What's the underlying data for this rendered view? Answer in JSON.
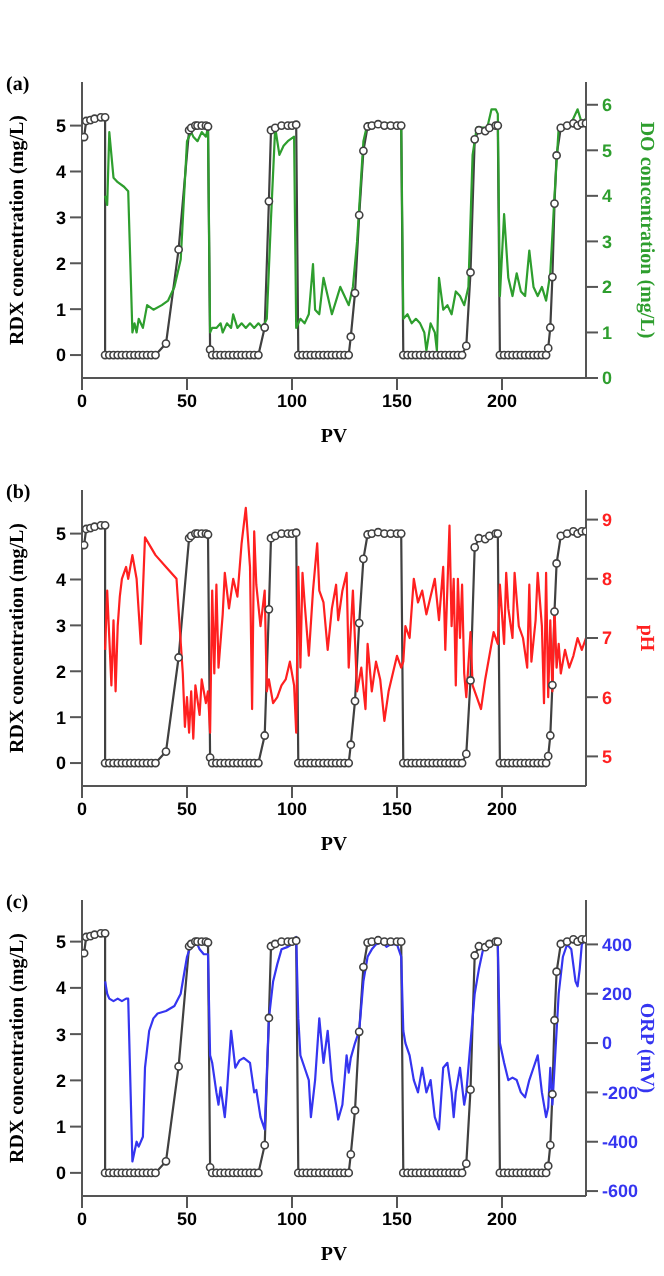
{
  "chart_data": [
    {
      "type": "line",
      "annotations": [
        "(a)"
      ],
      "xlabel": "PV",
      "ylabel": "RDX concentration (mg/L)",
      "y2label": "DO concentration (mg/L)",
      "xlim": [
        0,
        240
      ],
      "xticks": [
        0,
        50,
        100,
        150,
        200
      ],
      "ylim": [
        -0.5,
        5.95
      ],
      "yticks": [
        0,
        1,
        2,
        3,
        4,
        5
      ],
      "y2lim": [
        0,
        6.5
      ],
      "y2ticks": [
        0,
        1,
        2,
        3,
        4,
        5,
        6
      ],
      "series": [
        {
          "color": "#404040",
          "marker": "circle",
          "x": [
            1,
            2,
            4,
            6,
            9,
            11,
            11,
            13,
            15,
            17,
            19,
            21,
            23,
            25,
            27,
            29,
            31,
            33,
            35,
            40,
            46,
            51,
            52,
            54,
            55,
            57,
            59,
            60,
            61,
            62,
            64,
            66,
            68,
            70,
            72,
            74,
            76,
            78,
            80,
            82,
            84,
            87,
            89,
            90,
            92,
            95,
            98,
            100,
            102,
            103,
            105,
            107,
            109,
            111,
            113,
            115,
            117,
            119,
            121,
            123,
            125,
            127,
            128,
            130,
            132,
            134,
            136,
            138,
            141,
            144,
            147,
            150,
            152,
            153,
            155,
            157,
            159,
            161,
            163,
            165,
            167,
            169,
            171,
            173,
            175,
            177,
            179,
            181,
            183,
            185,
            187,
            189,
            192,
            194,
            197,
            198,
            199,
            201,
            203,
            205,
            207,
            209,
            211,
            213,
            215,
            217,
            219,
            221,
            222,
            223,
            224,
            225,
            226,
            228,
            231,
            234,
            236,
            238,
            240
          ],
          "values": [
            4.75,
            5.1,
            5.12,
            5.15,
            5.18,
            5.18,
            0,
            0,
            0,
            0,
            0,
            0,
            0,
            0,
            0,
            0,
            0,
            0,
            0,
            0.25,
            2.3,
            4.9,
            4.95,
            5.0,
            5.0,
            5.0,
            5.0,
            4.98,
            0.12,
            0,
            0,
            0,
            0,
            0,
            0,
            0,
            0,
            0,
            0,
            0,
            0,
            0.6,
            3.35,
            4.9,
            4.95,
            5.0,
            5.0,
            5.0,
            5.02,
            0,
            0,
            0,
            0,
            0,
            0,
            0,
            0,
            0,
            0,
            0,
            0,
            0,
            0.4,
            1.35,
            3.05,
            4.45,
            4.98,
            5.0,
            5.03,
            5.0,
            5.0,
            5.0,
            5.0,
            0,
            0,
            0,
            0,
            0,
            0,
            0,
            0,
            0,
            0,
            0,
            0,
            0,
            0,
            0,
            0.2,
            1.8,
            4.7,
            4.9,
            4.88,
            4.95,
            5.0,
            5.0,
            0,
            0,
            0,
            0,
            0,
            0,
            0,
            0,
            0,
            0,
            0,
            0,
            0.15,
            0.6,
            1.7,
            3.3,
            4.35,
            4.95,
            5.0,
            5.05,
            5.0,
            5.05,
            5.05
          ]
        },
        {
          "color": "#2e9e2e",
          "marker": "none",
          "axis": "y2",
          "x": [
            11,
            12,
            13,
            15,
            17,
            20,
            22,
            24,
            25,
            26,
            27,
            29,
            31,
            34,
            38,
            41,
            44,
            47,
            50,
            52,
            53,
            55,
            57,
            59,
            60,
            61,
            62,
            64,
            66,
            67,
            69,
            71,
            72,
            74,
            76,
            78,
            80,
            82,
            84,
            86,
            88,
            90,
            92,
            94,
            96,
            98,
            101,
            102,
            104,
            106,
            108,
            110,
            111,
            113,
            115,
            117,
            119,
            121,
            123,
            125,
            127,
            129,
            131,
            134,
            136,
            140,
            145,
            150,
            152,
            153,
            155,
            157,
            159,
            161,
            163,
            164,
            166,
            168,
            169,
            170,
            172,
            174,
            176,
            178,
            180,
            182,
            184,
            186,
            188,
            190,
            193,
            195,
            197,
            198,
            199,
            201,
            203,
            205,
            207,
            209,
            211,
            213,
            215,
            217,
            219,
            221,
            223,
            225,
            227,
            230,
            233,
            236,
            238,
            240
          ],
          "values": [
            4.0,
            3.8,
            5.4,
            4.4,
            4.3,
            4.2,
            4.1,
            1.0,
            1.2,
            1.0,
            1.3,
            1.1,
            1.6,
            1.5,
            1.6,
            1.7,
            2.0,
            2.6,
            5.2,
            5.4,
            5.3,
            5.2,
            5.4,
            5.3,
            5.5,
            1.0,
            1.1,
            1.1,
            1.2,
            1.0,
            1.2,
            1.1,
            1.4,
            1.1,
            1.2,
            1.1,
            1.2,
            1.1,
            1.2,
            1.1,
            1.3,
            3.5,
            5.5,
            4.9,
            5.1,
            5.2,
            5.3,
            1.1,
            1.3,
            1.2,
            1.4,
            2.5,
            1.5,
            1.4,
            2.2,
            1.8,
            1.4,
            1.7,
            2.0,
            1.8,
            1.6,
            2.0,
            3.0,
            5.2,
            5.6,
            5.6,
            5.6,
            5.5,
            5.6,
            1.3,
            1.4,
            1.2,
            1.3,
            1.2,
            1.0,
            0.6,
            1.2,
            1.0,
            0.6,
            2.2,
            1.5,
            1.6,
            1.4,
            1.9,
            1.8,
            1.6,
            2.0,
            4.9,
            5.5,
            5.5,
            5.5,
            5.9,
            5.9,
            5.8,
            1.8,
            3.6,
            2.2,
            1.8,
            2.3,
            1.9,
            1.8,
            2.8,
            2.0,
            1.8,
            2.0,
            1.7,
            2.3,
            4.0,
            5.5,
            5.5,
            5.6,
            5.9,
            5.6,
            5.7
          ]
        }
      ]
    },
    {
      "type": "line",
      "annotations": [
        "(b)"
      ],
      "xlabel": "PV",
      "ylabel": "RDX concentration (mg/L)",
      "y2label": "pH",
      "xlim": [
        0,
        240
      ],
      "xticks": [
        0,
        50,
        100,
        150,
        200
      ],
      "ylim": [
        -0.5,
        5.95
      ],
      "yticks": [
        0,
        1,
        2,
        3,
        4,
        5
      ],
      "y2lim": [
        4.5,
        9.5
      ],
      "y2ticks": [
        5,
        6,
        7,
        8,
        9
      ],
      "series": [
        {
          "color": "#404040",
          "marker": "circle",
          "x": [
            1,
            2,
            4,
            6,
            9,
            11,
            11,
            13,
            15,
            17,
            19,
            21,
            23,
            25,
            27,
            29,
            31,
            33,
            35,
            40,
            46,
            51,
            52,
            54,
            55,
            57,
            59,
            60,
            61,
            62,
            64,
            66,
            68,
            70,
            72,
            74,
            76,
            78,
            80,
            82,
            84,
            87,
            89,
            90,
            92,
            95,
            98,
            100,
            102,
            103,
            105,
            107,
            109,
            111,
            113,
            115,
            117,
            119,
            121,
            123,
            125,
            127,
            128,
            130,
            132,
            134,
            136,
            138,
            141,
            144,
            147,
            150,
            152,
            153,
            155,
            157,
            159,
            161,
            163,
            165,
            167,
            169,
            171,
            173,
            175,
            177,
            179,
            181,
            183,
            185,
            187,
            189,
            192,
            194,
            197,
            198,
            199,
            201,
            203,
            205,
            207,
            209,
            211,
            213,
            215,
            217,
            219,
            221,
            222,
            223,
            224,
            225,
            226,
            228,
            231,
            234,
            236,
            238,
            240
          ],
          "values": [
            4.75,
            5.1,
            5.12,
            5.15,
            5.18,
            5.18,
            0,
            0,
            0,
            0,
            0,
            0,
            0,
            0,
            0,
            0,
            0,
            0,
            0,
            0.25,
            2.3,
            4.9,
            4.95,
            5.0,
            5.0,
            5.0,
            5.0,
            4.98,
            0.12,
            0,
            0,
            0,
            0,
            0,
            0,
            0,
            0,
            0,
            0,
            0,
            0,
            0.6,
            3.35,
            4.9,
            4.95,
            5.0,
            5.0,
            5.0,
            5.02,
            0,
            0,
            0,
            0,
            0,
            0,
            0,
            0,
            0,
            0,
            0,
            0,
            0,
            0.4,
            1.35,
            3.05,
            4.45,
            4.98,
            5.0,
            5.03,
            5.0,
            5.0,
            5.0,
            5.0,
            0,
            0,
            0,
            0,
            0,
            0,
            0,
            0,
            0,
            0,
            0,
            0,
            0,
            0,
            0,
            0.2,
            1.8,
            4.7,
            4.9,
            4.88,
            4.95,
            5.0,
            5.0,
            0,
            0,
            0,
            0,
            0,
            0,
            0,
            0,
            0,
            0,
            0,
            0,
            0.15,
            0.6,
            1.7,
            3.3,
            4.35,
            4.95,
            5.0,
            5.05,
            5.0,
            5.05,
            5.05
          ]
        },
        {
          "color": "#ff2020",
          "marker": "none",
          "axis": "y2",
          "x": [
            11,
            12,
            13,
            14,
            15,
            16,
            17,
            18,
            19,
            21,
            22,
            24,
            26,
            28,
            30,
            35,
            40,
            45,
            48,
            49,
            50,
            51,
            52,
            53,
            54,
            56,
            57,
            59,
            60,
            61,
            62,
            63,
            64,
            65,
            67,
            68,
            70,
            72,
            74,
            76,
            78,
            80,
            81,
            82,
            83,
            85,
            87,
            88,
            89,
            91,
            93,
            95,
            97,
            99,
            101,
            102,
            103,
            104,
            105,
            106,
            108,
            110,
            112,
            113,
            115,
            117,
            119,
            121,
            122,
            124,
            126,
            127,
            129,
            131,
            133,
            135,
            136,
            138,
            140,
            142,
            144,
            146,
            148,
            150,
            152,
            153,
            154,
            156,
            158,
            160,
            162,
            164,
            166,
            168,
            170,
            172,
            173,
            175,
            176,
            177,
            178,
            179,
            180,
            181,
            182,
            183,
            185,
            186,
            188,
            190,
            192,
            194,
            196,
            198,
            199,
            201,
            202,
            203,
            205,
            206,
            208,
            210,
            212,
            213,
            214,
            216,
            217,
            219,
            220,
            221,
            222,
            223,
            224,
            225,
            226,
            227,
            228,
            230,
            232,
            234,
            236,
            238,
            240
          ],
          "values": [
            6.8,
            7.8,
            7.0,
            6.2,
            7.3,
            6.1,
            7.2,
            7.7,
            8.0,
            8.2,
            8.0,
            8.4,
            8.0,
            6.9,
            8.7,
            8.4,
            8.2,
            8.0,
            6.4,
            5.5,
            6.0,
            5.4,
            6.1,
            5.3,
            6.2,
            5.7,
            6.3,
            5.9,
            6.1,
            5.4,
            7.8,
            6.4,
            7.9,
            6.5,
            7.4,
            8.1,
            7.5,
            8.0,
            7.7,
            8.6,
            9.2,
            8.2,
            5.8,
            8.8,
            7.9,
            7.2,
            7.8,
            6.1,
            6.3,
            5.9,
            6.0,
            6.2,
            6.3,
            6.6,
            6.2,
            5.4,
            8.2,
            6.5,
            8.1,
            7.6,
            6.7,
            7.8,
            8.6,
            7.8,
            7.6,
            6.8,
            7.5,
            7.9,
            7.3,
            7.8,
            8.1,
            6.5,
            7.8,
            6.1,
            6.5,
            5.8,
            6.9,
            6.1,
            6.6,
            6.3,
            5.6,
            6.1,
            6.4,
            6.7,
            6.5,
            6.6,
            7.2,
            7.0,
            8.0,
            7.6,
            7.8,
            7.4,
            7.7,
            8.0,
            7.3,
            8.2,
            6.8,
            8.9,
            7.2,
            8.0,
            6.2,
            8.0,
            7.0,
            7.9,
            6.4,
            6.0,
            7.1,
            6.2,
            6.0,
            5.8,
            6.3,
            6.7,
            7.1,
            6.9,
            7.9,
            6.9,
            8.1,
            7.5,
            7.0,
            8.1,
            7.2,
            7.0,
            6.5,
            7.9,
            6.6,
            7.3,
            8.1,
            7.2,
            5.9,
            8.1,
            6.0,
            7.3,
            6.1,
            7.5,
            6.5,
            6.9,
            6.4,
            6.8,
            6.5,
            6.7,
            7.0,
            6.8,
            7.0
          ]
        }
      ]
    },
    {
      "type": "line",
      "annotations": [
        "(c)"
      ],
      "xlabel": "PV",
      "ylabel": "RDX concentration (mg/L)",
      "y2label": "ORP (mV)",
      "xlim": [
        0,
        240
      ],
      "xticks": [
        0,
        50,
        100,
        150,
        200
      ],
      "ylim": [
        -0.5,
        5.9
      ],
      "yticks": [
        0,
        1,
        2,
        3,
        4,
        5
      ],
      "y2lim": [
        -620,
        580
      ],
      "y2ticks": [
        -600,
        -400,
        -200,
        0,
        200,
        400
      ],
      "series": [
        {
          "color": "#404040",
          "marker": "circle",
          "x": [
            1,
            2,
            4,
            6,
            9,
            11,
            11,
            13,
            15,
            17,
            19,
            21,
            23,
            25,
            27,
            29,
            31,
            33,
            35,
            40,
            46,
            51,
            52,
            54,
            55,
            57,
            59,
            60,
            61,
            62,
            64,
            66,
            68,
            70,
            72,
            74,
            76,
            78,
            80,
            82,
            84,
            87,
            89,
            90,
            92,
            95,
            98,
            100,
            102,
            103,
            105,
            107,
            109,
            111,
            113,
            115,
            117,
            119,
            121,
            123,
            125,
            127,
            128,
            130,
            132,
            134,
            136,
            138,
            141,
            144,
            147,
            150,
            152,
            153,
            155,
            157,
            159,
            161,
            163,
            165,
            167,
            169,
            171,
            173,
            175,
            177,
            179,
            181,
            183,
            185,
            187,
            189,
            192,
            194,
            197,
            198,
            199,
            201,
            203,
            205,
            207,
            209,
            211,
            213,
            215,
            217,
            219,
            221,
            222,
            223,
            224,
            225,
            226,
            228,
            231,
            234,
            236,
            238,
            240
          ],
          "values": [
            4.75,
            5.1,
            5.12,
            5.15,
            5.18,
            5.18,
            0,
            0,
            0,
            0,
            0,
            0,
            0,
            0,
            0,
            0,
            0,
            0,
            0,
            0.25,
            2.3,
            4.9,
            4.95,
            5.0,
            5.0,
            5.0,
            5.0,
            4.98,
            0.12,
            0,
            0,
            0,
            0,
            0,
            0,
            0,
            0,
            0,
            0,
            0,
            0,
            0.6,
            3.35,
            4.9,
            4.95,
            5.0,
            5.0,
            5.0,
            5.02,
            0,
            0,
            0,
            0,
            0,
            0,
            0,
            0,
            0,
            0,
            0,
            0,
            0,
            0.4,
            1.35,
            3.05,
            4.45,
            4.98,
            5.0,
            5.03,
            5.0,
            5.0,
            5.0,
            5.0,
            0,
            0,
            0,
            0,
            0,
            0,
            0,
            0,
            0,
            0,
            0,
            0,
            0,
            0,
            0,
            0.2,
            1.8,
            4.7,
            4.9,
            4.88,
            4.95,
            5.0,
            5.0,
            0,
            0,
            0,
            0,
            0,
            0,
            0,
            0,
            0,
            0,
            0,
            0,
            0.15,
            0.6,
            1.7,
            3.3,
            4.35,
            4.95,
            5.0,
            5.05,
            5.0,
            5.05,
            5.05
          ]
        },
        {
          "color": "#3535f0",
          "marker": "none",
          "axis": "y2",
          "x": [
            11,
            12,
            13,
            15,
            17,
            19,
            21,
            22,
            24,
            26,
            27,
            29,
            30,
            32,
            34,
            36,
            40,
            44,
            47,
            50,
            52,
            54,
            56,
            58,
            60,
            61,
            62,
            64,
            65,
            66,
            68,
            69,
            71,
            73,
            75,
            77,
            80,
            82,
            83,
            85,
            87,
            89,
            91,
            93,
            95,
            98,
            100,
            102,
            103,
            104,
            106,
            108,
            109,
            111,
            113,
            115,
            117,
            119,
            121,
            122,
            124,
            126,
            127,
            128,
            130,
            132,
            134,
            136,
            138,
            140,
            143,
            145,
            147,
            150,
            152,
            153,
            154,
            156,
            158,
            160,
            162,
            164,
            166,
            168,
            170,
            172,
            174,
            176,
            177,
            178,
            180,
            182,
            183,
            185,
            187,
            189,
            191,
            193,
            195,
            197,
            198,
            199,
            201,
            203,
            205,
            207,
            209,
            211,
            213,
            215,
            217,
            219,
            221,
            222,
            223,
            224,
            225,
            227,
            229,
            231,
            233,
            235,
            236,
            237,
            238,
            240
          ],
          "values": [
            250,
            200,
            180,
            170,
            180,
            170,
            180,
            180,
            -480,
            -400,
            -420,
            -380,
            -100,
            50,
            100,
            120,
            130,
            150,
            200,
            350,
            400,
            420,
            380,
            360,
            360,
            -50,
            -80,
            -200,
            -250,
            -180,
            -300,
            -200,
            50,
            -100,
            -70,
            -60,
            -80,
            -200,
            -190,
            -300,
            -350,
            100,
            250,
            320,
            380,
            390,
            400,
            430,
            100,
            -50,
            -100,
            -150,
            -300,
            -150,
            100,
            -80,
            50,
            -150,
            -250,
            -310,
            -250,
            -50,
            -120,
            -60,
            0,
            50,
            250,
            350,
            380,
            400,
            410,
            390,
            400,
            400,
            350,
            50,
            0,
            -50,
            -150,
            -200,
            -100,
            -200,
            -150,
            -300,
            -350,
            -100,
            -80,
            -200,
            -300,
            -200,
            -100,
            -250,
            -200,
            0,
            200,
            300,
            380,
            400,
            400,
            410,
            400,
            0,
            -80,
            -150,
            -140,
            -150,
            -200,
            -220,
            -150,
            -100,
            -50,
            -200,
            -300,
            -260,
            -100,
            -250,
            -100,
            200,
            350,
            400,
            380,
            250,
            230,
            300,
            400,
            420
          ]
        }
      ]
    }
  ]
}
